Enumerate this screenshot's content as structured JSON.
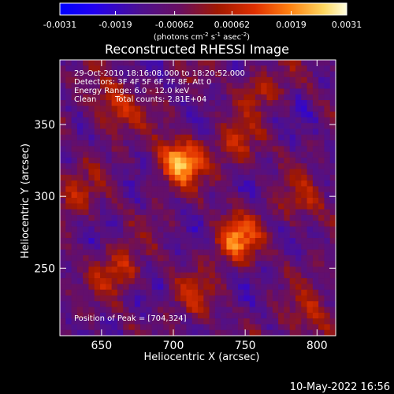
{
  "chart_data": {
    "type": "heatmap",
    "title": "Reconstructed RHESSI Image",
    "xlabel": "Heliocentric X (arcsec)",
    "ylabel": "Heliocentric Y (arcsec)",
    "xlim": [
      621,
      813
    ],
    "ylim": [
      203,
      395
    ],
    "x_ticks": [
      650,
      700,
      750,
      800
    ],
    "y_ticks": [
      250,
      300,
      350
    ],
    "colorbar": {
      "ticks": [
        "-0.0031",
        "-0.0019",
        "-0.00062",
        "0.00062",
        "0.0019",
        "0.0031"
      ],
      "tick_values": [
        -0.0031,
        -0.0019,
        -0.00062,
        0.00062,
        0.0019,
        0.0031
      ],
      "range": [
        -0.0031,
        0.0031
      ],
      "unit_parts": [
        "(photons cm",
        "-2",
        " s",
        "-1",
        " asec",
        "-2",
        ")"
      ]
    },
    "annotations": [
      "29-Oct-2010 18:16:08.000 to 18:20:52.000",
      "Detectors: 3F 4F 5F 6F 7F 8F, Att 0",
      "Energy Range: 6.0 - 12.0 keV",
      "Clean",
      "Total counts: 2.81E+04"
    ],
    "peak_label": "Position of Peak = [704,324]",
    "peak": [
      704,
      324
    ],
    "sources": [
      {
        "x": 704,
        "y": 324,
        "amp": 0.0031
      },
      {
        "x": 744,
        "y": 270,
        "amp": 0.0024
      },
      {
        "x": 658,
        "y": 362,
        "amp": 0.0019
      },
      {
        "x": 662,
        "y": 248,
        "amp": 0.0016
      },
      {
        "x": 745,
        "y": 335,
        "amp": 0.0014
      },
      {
        "x": 630,
        "y": 300,
        "amp": 0.0012
      },
      {
        "x": 760,
        "y": 375,
        "amp": 0.0012
      },
      {
        "x": 790,
        "y": 295,
        "amp": 0.0012
      },
      {
        "x": 795,
        "y": 215,
        "amp": 0.0013
      },
      {
        "x": 715,
        "y": 230,
        "amp": 0.0011
      }
    ]
  },
  "footer": {
    "date_stamp": "10-May-2022 16:56"
  }
}
